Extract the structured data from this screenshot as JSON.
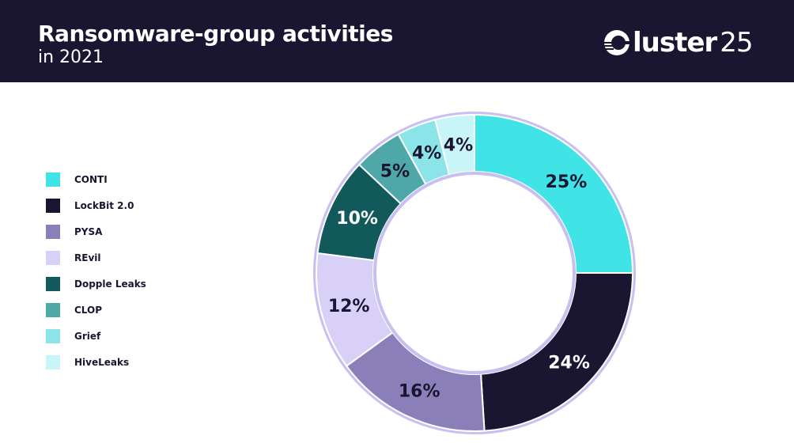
{
  "header": {
    "title": "Ransomware-group activities",
    "subtitle": "in 2021",
    "logo_word": "luster",
    "logo_num": "25",
    "background": "#1a1530"
  },
  "chart_data": {
    "type": "pie",
    "donut": true,
    "title": "Ransomware-group activities",
    "subtitle": "in 2021",
    "legend_position": "left",
    "slices": [
      {
        "name": "CONTI",
        "value": 25,
        "label": "25%",
        "color": "#40e3e6",
        "text_color": "#1a1530"
      },
      {
        "name": "LockBit 2.0",
        "value": 24,
        "label": "24%",
        "color": "#1a1530",
        "text_color": "#ffffff"
      },
      {
        "name": "PYSA",
        "value": 16,
        "label": "16%",
        "color": "#8a7fb8",
        "text_color": "#1a1530"
      },
      {
        "name": "REvil",
        "value": 12,
        "label": "12%",
        "color": "#d8d0f7",
        "text_color": "#1a1530"
      },
      {
        "name": "Dopple Leaks",
        "value": 10,
        "label": "10%",
        "color": "#11595a",
        "text_color": "#ffffff"
      },
      {
        "name": "CLOP",
        "value": 5,
        "label": "5%",
        "color": "#4fa8a8",
        "text_color": "#1a1530"
      },
      {
        "name": "Grief",
        "value": 4,
        "label": "4%",
        "color": "#8be4e8",
        "text_color": "#1a1530"
      },
      {
        "name": "HiveLeaks",
        "value": 4,
        "label": "4%",
        "color": "#c8f5f7",
        "text_color": "#1a1530"
      }
    ]
  }
}
